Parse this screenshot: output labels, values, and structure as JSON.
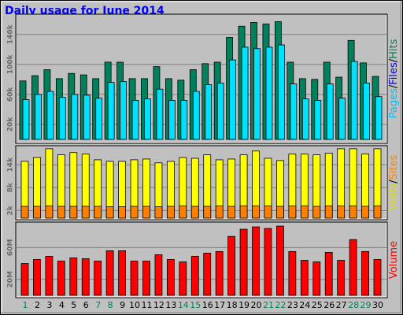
{
  "chart_data": [
    {
      "type": "bar",
      "title": "Daily usage for June 2014",
      "side_label": [
        {
          "text": "Pages",
          "color": "#00c0ff"
        },
        {
          "text": "/",
          "color": "#000000"
        },
        {
          "text": "Files",
          "color": "#0000ff"
        },
        {
          "text": "/",
          "color": "#000000"
        },
        {
          "text": "Hits",
          "color": "#00805c"
        }
      ],
      "ylim": [
        0,
        167000
      ],
      "yticks": [
        {
          "value": 20000,
          "label": "20k"
        },
        {
          "value": 60000,
          "label": "60k"
        },
        {
          "value": 100000,
          "label": "100k"
        },
        {
          "value": 140000,
          "label": "140k"
        }
      ],
      "series": [
        {
          "name": "Hits",
          "color": "#00805c",
          "values": [
            78000,
            85000,
            93000,
            81000,
            88000,
            86000,
            81000,
            103000,
            103000,
            81000,
            81000,
            97000,
            81000,
            79000,
            93000,
            101000,
            103000,
            136000,
            151000,
            156000,
            154000,
            157000,
            103000,
            81000,
            80000,
            103000,
            83000,
            132000,
            102000,
            84000
          ]
        },
        {
          "name": "Files",
          "color": "#00e0ff",
          "values": [
            53000,
            60000,
            64000,
            56000,
            60000,
            59000,
            55000,
            76000,
            77000,
            52000,
            54000,
            67000,
            52000,
            52000,
            64000,
            73000,
            75000,
            106000,
            123000,
            121000,
            123000,
            126000,
            74000,
            54000,
            52000,
            74000,
            55000,
            104000,
            75000,
            57000
          ]
        }
      ]
    },
    {
      "type": "bar",
      "side_label": [
        {
          "text": "Visits",
          "color": "#e0e000"
        },
        {
          "text": "/",
          "color": "#000000"
        },
        {
          "text": "Sites",
          "color": "#ff8000"
        }
      ],
      "ylim": [
        0,
        19000
      ],
      "yticks": [
        {
          "value": 2000,
          "label": "2k"
        },
        {
          "value": 8000,
          "label": "8k"
        },
        {
          "value": 14000,
          "label": "14k"
        }
      ],
      "series": [
        {
          "name": "Visits",
          "color": "#ffff00",
          "values": [
            14900,
            15900,
            18200,
            16600,
            17200,
            16800,
            15300,
            14900,
            14900,
            15300,
            15500,
            14500,
            14900,
            15900,
            15700,
            16600,
            15300,
            15500,
            16600,
            17600,
            15700,
            15100,
            16800,
            16800,
            16600,
            17000,
            18200,
            18200,
            16800,
            18200
          ]
        },
        {
          "name": "Sites",
          "color": "#ff8000",
          "values": [
            3100,
            3100,
            3200,
            3100,
            3100,
            3100,
            3100,
            3000,
            3000,
            3100,
            3100,
            3000,
            3100,
            3200,
            3100,
            3100,
            3200,
            3100,
            3200,
            3200,
            3200,
            3100,
            3200,
            3200,
            3100,
            3200,
            3200,
            3200,
            3100,
            3200
          ]
        }
      ]
    },
    {
      "type": "bar",
      "side_label": [
        {
          "text": "Volume",
          "color": "#ff0000"
        }
      ],
      "ylim": [
        0,
        92000000
      ],
      "yticks": [
        {
          "value": 20000000,
          "label": "20M"
        },
        {
          "value": 60000000,
          "label": "60M"
        }
      ],
      "categories": [
        "1",
        "2",
        "3",
        "4",
        "5",
        "6",
        "7",
        "8",
        "9",
        "10",
        "11",
        "12",
        "13",
        "14",
        "15",
        "16",
        "17",
        "18",
        "19",
        "20",
        "21",
        "22",
        "23",
        "24",
        "25",
        "26",
        "27",
        "28",
        "29",
        "30"
      ],
      "category_colors": [
        "#00805c",
        "#000000",
        "#000000",
        "#000000",
        "#000000",
        "#000000",
        "#00805c",
        "#00805c",
        "#000000",
        "#000000",
        "#000000",
        "#000000",
        "#000000",
        "#00805c",
        "#00805c",
        "#000000",
        "#000000",
        "#000000",
        "#000000",
        "#000000",
        "#00805c",
        "#00805c",
        "#000000",
        "#000000",
        "#000000",
        "#000000",
        "#000000",
        "#00805c",
        "#00805c",
        "#000000"
      ],
      "series": [
        {
          "name": "Volume",
          "color": "#ff0000",
          "values": [
            40000000,
            45000000,
            49000000,
            43000000,
            47000000,
            46000000,
            43000000,
            56000000,
            56000000,
            43000000,
            43000000,
            51000000,
            45000000,
            42000000,
            49000000,
            53000000,
            55000000,
            74000000,
            83000000,
            86000000,
            84000000,
            87000000,
            55000000,
            44000000,
            42000000,
            54000000,
            44000000,
            70000000,
            55000000,
            45000000
          ]
        }
      ]
    }
  ]
}
